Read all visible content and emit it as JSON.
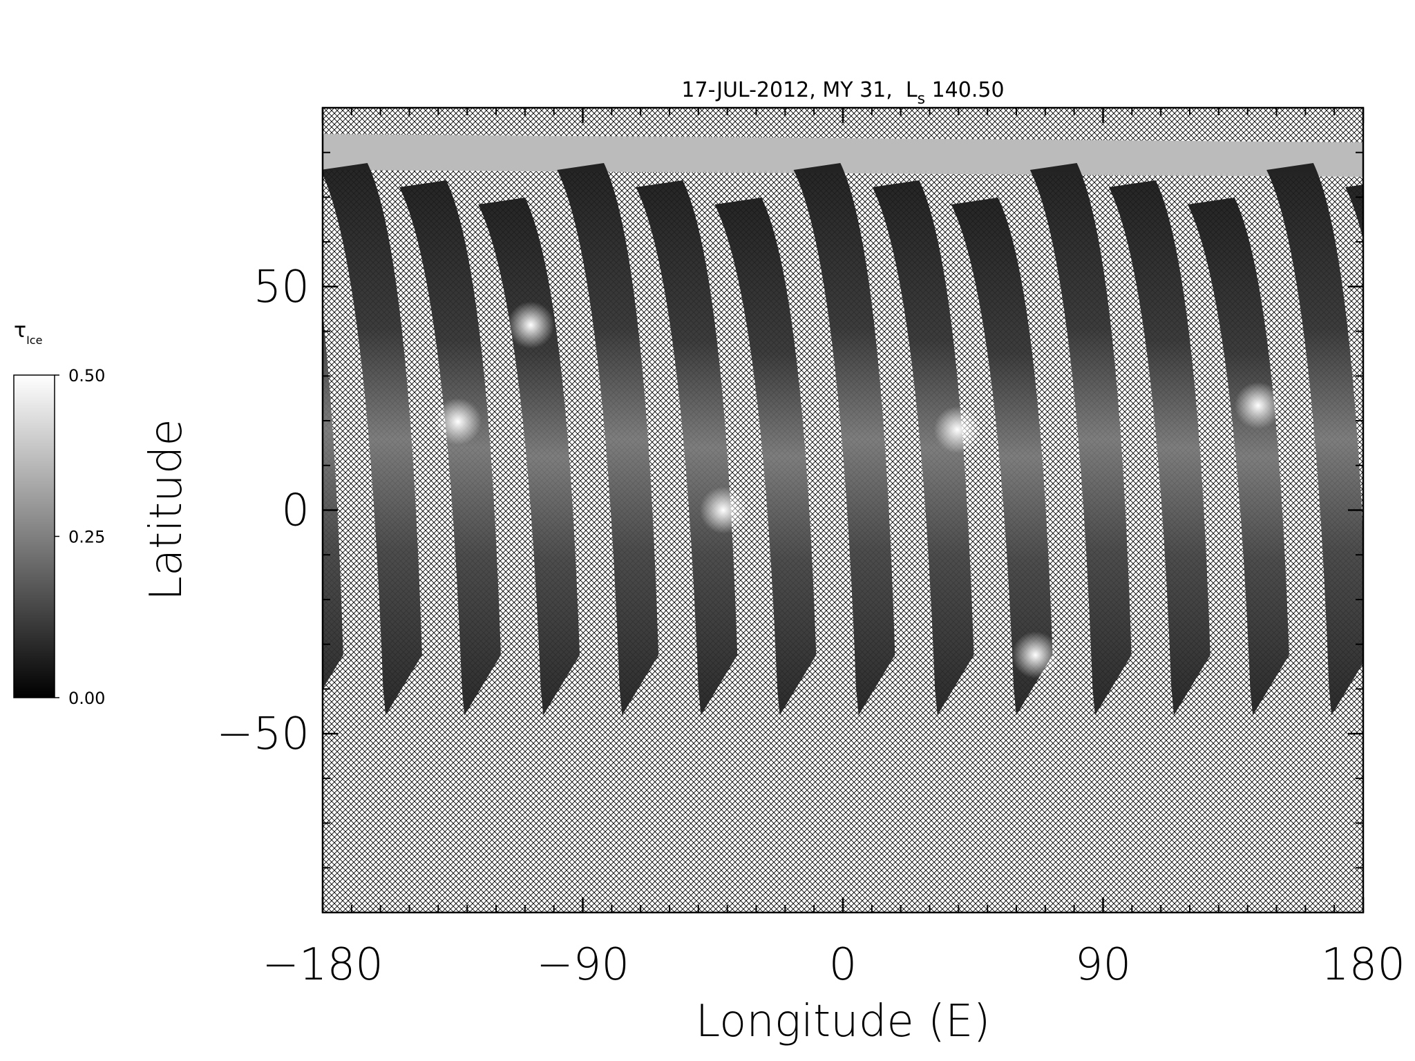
{
  "chart_data": {
    "type": "map",
    "title": {
      "text": "17-JUL-2012, MY 31,  L",
      "subscript": "s",
      "rest": " 140.50"
    },
    "xlabel": "Longitude (E)",
    "ylabel": "Latitude",
    "xlim": [
      -180,
      180
    ],
    "ylim": [
      -90,
      90
    ],
    "xticks": [
      {
        "value": -180,
        "label": "−180"
      },
      {
        "value": -90,
        "label": "−90"
      },
      0,
      90,
      180
    ],
    "yticks": [
      {
        "value": -50,
        "label": "−50"
      },
      0,
      50
    ],
    "xminorticks": [
      -170,
      -160,
      -150,
      -140,
      -130,
      -120,
      -110,
      -100,
      -80,
      -70,
      -60,
      -50,
      -40,
      -30,
      -20,
      -10,
      10,
      20,
      30,
      40,
      50,
      60,
      70,
      80,
      100,
      110,
      120,
      130,
      140,
      150,
      160,
      170
    ],
    "yminorticks": [
      -80,
      -70,
      -60,
      -40,
      -30,
      -20,
      -10,
      10,
      20,
      30,
      40,
      60,
      70,
      80
    ],
    "colorbar": {
      "label": "τ",
      "subscript": "Ice",
      "lim": [
        0,
        0.5
      ],
      "ticks": [
        {
          "value": 0,
          "label": "0.00"
        },
        {
          "value": 0.25,
          "label": "0.25"
        },
        {
          "value": 0.5,
          "label": "0.50"
        }
      ]
    }
  }
}
